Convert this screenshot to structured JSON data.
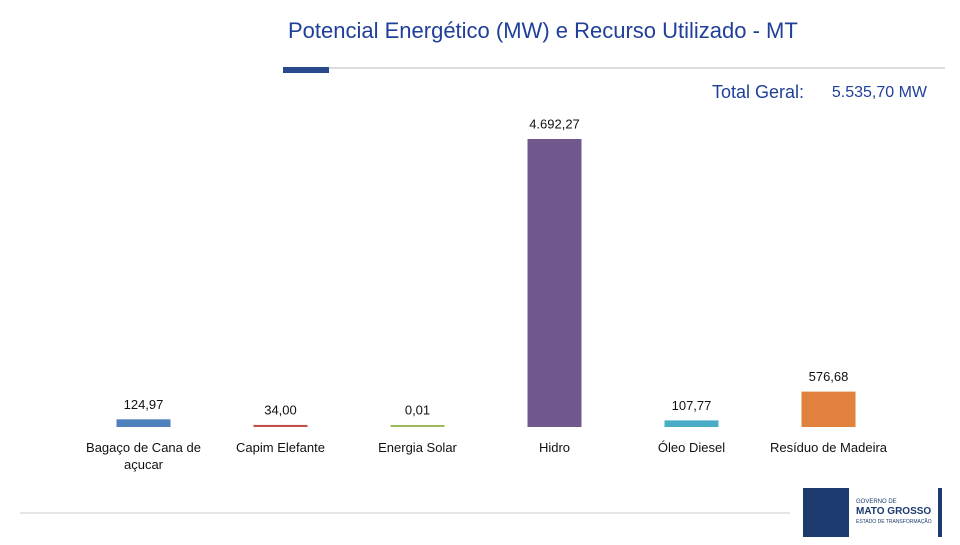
{
  "chart_data": {
    "type": "bar",
    "title": "Potencial Energético (MW) e Recurso Utilizado - MT",
    "total_label": "Total Geral:",
    "total_value_label": "5.535,70 MW",
    "categories": [
      "Bagaço de Cana de açucar",
      "Capim Elefante",
      "Energia Solar",
      "Hidro",
      "Óleo Diesel",
      "Resíduo de Madeira"
    ],
    "values": [
      124.97,
      34.0,
      0.01,
      4692.27,
      107.77,
      576.68
    ],
    "value_labels": [
      "124,97",
      "34,00",
      "0,01",
      "4.692,27",
      "107,77",
      "576,68"
    ],
    "colors": [
      "#4f81bd",
      "#c0504d",
      "#9bbb59",
      "#70588f",
      "#4bacc6",
      "#e0823d"
    ]
  },
  "logo": {
    "line1": "GOVERNO DE",
    "line2": "MATO GROSSO",
    "line3": "ESTADO DE TRANSFORMAÇÃO"
  }
}
